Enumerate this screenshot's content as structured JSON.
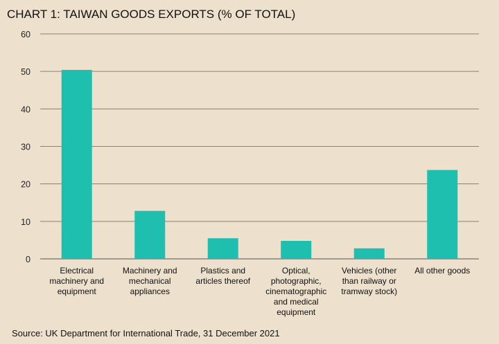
{
  "chart_data": {
    "type": "bar",
    "title": "CHART 1: TAIWAN GOODS EXPORTS (% OF TOTAL)",
    "categories": [
      "Electrical machinery and equipment",
      "Machinery and mechanical appliances",
      "Plastics and articles thereof",
      "Optical, photographic, cinematographic and medical equipment",
      "Vehicles (other than railway or tramway stock)",
      "All other goods"
    ],
    "category_lines": [
      [
        "Electrical",
        "machinery and",
        "equipment"
      ],
      [
        "Machinery and",
        "mechanical",
        "appliances"
      ],
      [
        "Plastics and",
        "articles thereof"
      ],
      [
        "Optical,",
        "photographic,",
        "cinematographic",
        "and medical",
        "equipment"
      ],
      [
        "Vehicles (other",
        "than railway or",
        "tramway stock)"
      ],
      [
        "All other goods"
      ]
    ],
    "values": [
      50.4,
      12.8,
      5.5,
      4.8,
      2.8,
      23.7
    ],
    "ylim": [
      0,
      60
    ],
    "yticks": [
      "0",
      "10",
      "20",
      "30",
      "40",
      "50",
      "60"
    ],
    "xlabel": "",
    "ylabel": "",
    "grid": true,
    "bar_color": "#1fbfb0",
    "source": "Source: UK Department for International Trade, 31 December 2021"
  }
}
